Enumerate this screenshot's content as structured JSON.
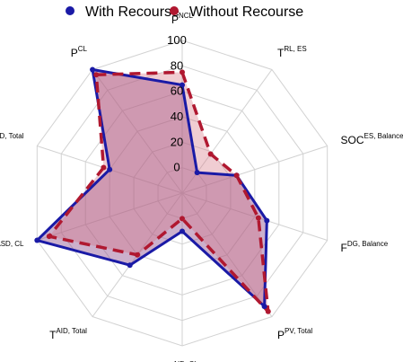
{
  "chart_data": {
    "type": "radar",
    "title": "",
    "axes": [
      {
        "main": "P",
        "sup": "NCL"
      },
      {
        "main": "T",
        "sup": "RL, ES"
      },
      {
        "main": "SOC",
        "sup": "ES, Balance"
      },
      {
        "main": "F",
        "sup": "DG, Balance"
      },
      {
        "main": "P",
        "sup": "PV, Total"
      },
      {
        "main": "T",
        "sup": "AID, CL"
      },
      {
        "main": "T",
        "sup": "AID, Total"
      },
      {
        "main": "T",
        "sup": "ASD, CL"
      },
      {
        "main": "T",
        "sup": "ASD, Total"
      },
      {
        "main": "P",
        "sup": "CL"
      }
    ],
    "radial_ticks": [
      0,
      20,
      40,
      60,
      80,
      100
    ],
    "rlim": [
      -20,
      100
    ],
    "grid": true,
    "legend_position": "top",
    "series": [
      {
        "name": "With Recourse",
        "color": "#1a1aa6",
        "line_style": "solid",
        "values": [
          65,
          0,
          25,
          50,
          90,
          10,
          50,
          100,
          40,
          100
        ]
      },
      {
        "name": "Without Recourse",
        "color": "#b01830",
        "line_style": "dashed",
        "values": [
          75,
          18,
          25,
          43,
          95,
          0,
          40,
          90,
          45,
          95
        ]
      }
    ],
    "fill_color": "#8e4f8e",
    "fill_opacity": 0.45
  }
}
